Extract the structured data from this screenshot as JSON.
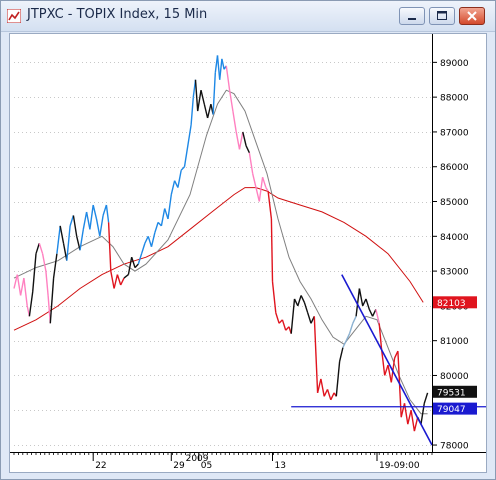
{
  "window": {
    "title": "JTPXC - TOPIX Index, 15 Min",
    "buttons": [
      "minimize",
      "maximize",
      "close"
    ]
  },
  "chart_data": {
    "type": "line",
    "instrument": "JTPXC",
    "title": "JTPXC - TOPIX Index, 15 Min",
    "y_ticks": [
      "89000",
      "88000",
      "87000",
      "86000",
      "85000",
      "84000",
      "83000",
      "82000",
      "81000",
      "80000",
      "79000",
      "78000"
    ],
    "x_ticks": [
      "22",
      "29",
      "05",
      "13",
      "19-09:00"
    ],
    "x_year_label": "2009",
    "ylim": [
      77800,
      89700
    ],
    "price_labels": [
      {
        "text": "82103",
        "value": 82103,
        "color": "#e0141e"
      },
      {
        "text": "79531",
        "value": 79531,
        "color": "#111111"
      },
      {
        "text": "79047",
        "value": 79047,
        "color": "#1a1ad0"
      }
    ],
    "price_series": [
      {
        "x": 0,
        "y": 82500,
        "color": "#ff80c0"
      },
      {
        "x": 3,
        "y": 82900,
        "color": "#ff80c0"
      },
      {
        "x": 6,
        "y": 82300,
        "color": "#ff80c0"
      },
      {
        "x": 9,
        "y": 82800,
        "color": "#ff80c0"
      },
      {
        "x": 12,
        "y": 82000,
        "color": "#ff80c0"
      },
      {
        "x": 14,
        "y": 81700,
        "color": "#ff80c0"
      },
      {
        "x": 17,
        "y": 82400,
        "color": "#111111"
      },
      {
        "x": 20,
        "y": 83500,
        "color": "#111111"
      },
      {
        "x": 23,
        "y": 83800,
        "color": "#111111"
      },
      {
        "x": 26,
        "y": 83500,
        "color": "#ff80c0"
      },
      {
        "x": 29,
        "y": 83000,
        "color": "#ff80c0"
      },
      {
        "x": 31,
        "y": 82300,
        "color": "#ff80c0"
      },
      {
        "x": 33,
        "y": 81500,
        "color": "#ff80c0"
      },
      {
        "x": 36,
        "y": 82800,
        "color": "#111111"
      },
      {
        "x": 39,
        "y": 83500,
        "color": "#111111"
      },
      {
        "x": 42,
        "y": 84300,
        "color": "#1e88e5"
      },
      {
        "x": 45,
        "y": 83800,
        "color": "#111111"
      },
      {
        "x": 48,
        "y": 83300,
        "color": "#111111"
      },
      {
        "x": 51,
        "y": 84300,
        "color": "#1e88e5"
      },
      {
        "x": 54,
        "y": 84600,
        "color": "#1e88e5"
      },
      {
        "x": 57,
        "y": 84000,
        "color": "#111111"
      },
      {
        "x": 60,
        "y": 83600,
        "color": "#111111"
      },
      {
        "x": 63,
        "y": 84200,
        "color": "#1e88e5"
      },
      {
        "x": 66,
        "y": 84700,
        "color": "#1e88e5"
      },
      {
        "x": 69,
        "y": 84200,
        "color": "#1e88e5"
      },
      {
        "x": 72,
        "y": 84900,
        "color": "#1e88e5"
      },
      {
        "x": 75,
        "y": 84500,
        "color": "#1e88e5"
      },
      {
        "x": 78,
        "y": 84000,
        "color": "#1e88e5"
      },
      {
        "x": 81,
        "y": 84600,
        "color": "#1e88e5"
      },
      {
        "x": 84,
        "y": 84900,
        "color": "#1e88e5"
      },
      {
        "x": 86,
        "y": 84400,
        "color": "#1e88e5"
      },
      {
        "x": 88,
        "y": 83000,
        "color": "#e0141e"
      },
      {
        "x": 91,
        "y": 82500,
        "color": "#e0141e"
      },
      {
        "x": 94,
        "y": 82900,
        "color": "#e0141e"
      },
      {
        "x": 97,
        "y": 82600,
        "color": "#e0141e"
      },
      {
        "x": 100,
        "y": 82800,
        "color": "#e0141e"
      },
      {
        "x": 104,
        "y": 82900,
        "color": "#111111"
      },
      {
        "x": 107,
        "y": 83400,
        "color": "#111111"
      },
      {
        "x": 110,
        "y": 83100,
        "color": "#111111"
      },
      {
        "x": 113,
        "y": 83200,
        "color": "#111111"
      },
      {
        "x": 116,
        "y": 83500,
        "color": "#1e88e5"
      },
      {
        "x": 119,
        "y": 83800,
        "color": "#1e88e5"
      },
      {
        "x": 122,
        "y": 84000,
        "color": "#1e88e5"
      },
      {
        "x": 125,
        "y": 83700,
        "color": "#1e88e5"
      },
      {
        "x": 128,
        "y": 84100,
        "color": "#1e88e5"
      },
      {
        "x": 131,
        "y": 84400,
        "color": "#1e88e5"
      },
      {
        "x": 134,
        "y": 84300,
        "color": "#1e88e5"
      },
      {
        "x": 137,
        "y": 84800,
        "color": "#1e88e5"
      },
      {
        "x": 140,
        "y": 84500,
        "color": "#1e88e5"
      },
      {
        "x": 143,
        "y": 85200,
        "color": "#1e88e5"
      },
      {
        "x": 146,
        "y": 85600,
        "color": "#1e88e5"
      },
      {
        "x": 149,
        "y": 85400,
        "color": "#1e88e5"
      },
      {
        "x": 152,
        "y": 85900,
        "color": "#1e88e5"
      },
      {
        "x": 155,
        "y": 86000,
        "color": "#1e88e5"
      },
      {
        "x": 161,
        "y": 87200,
        "color": "#1e88e5"
      },
      {
        "x": 163,
        "y": 88000,
        "color": "#1e88e5"
      },
      {
        "x": 165,
        "y": 88500,
        "color": "#1e88e5"
      },
      {
        "x": 167,
        "y": 87600,
        "color": "#111111"
      },
      {
        "x": 170,
        "y": 88200,
        "color": "#111111"
      },
      {
        "x": 173,
        "y": 87800,
        "color": "#111111"
      },
      {
        "x": 176,
        "y": 87400,
        "color": "#111111"
      },
      {
        "x": 179,
        "y": 87800,
        "color": "#111111"
      },
      {
        "x": 181,
        "y": 87500,
        "color": "#111111"
      },
      {
        "x": 183,
        "y": 88700,
        "color": "#1e88e5"
      },
      {
        "x": 185,
        "y": 89200,
        "color": "#1e88e5"
      },
      {
        "x": 187,
        "y": 88500,
        "color": "#1e88e5"
      },
      {
        "x": 189,
        "y": 89100,
        "color": "#1e88e5"
      },
      {
        "x": 191,
        "y": 88800,
        "color": "#1e88e5"
      },
      {
        "x": 193,
        "y": 88900,
        "color": "#1e88e5"
      },
      {
        "x": 196,
        "y": 88200,
        "color": "#ff80c0"
      },
      {
        "x": 199,
        "y": 87600,
        "color": "#ff80c0"
      },
      {
        "x": 202,
        "y": 87000,
        "color": "#ff80c0"
      },
      {
        "x": 205,
        "y": 86500,
        "color": "#ff80c0"
      },
      {
        "x": 208,
        "y": 87000,
        "color": "#ff80c0"
      },
      {
        "x": 211,
        "y": 86600,
        "color": "#111111"
      },
      {
        "x": 214,
        "y": 86400,
        "color": "#111111"
      },
      {
        "x": 217,
        "y": 85800,
        "color": "#ff80c0"
      },
      {
        "x": 220,
        "y": 85400,
        "color": "#ff80c0"
      },
      {
        "x": 223,
        "y": 85000,
        "color": "#ff80c0"
      },
      {
        "x": 226,
        "y": 85700,
        "color": "#ff80c0"
      },
      {
        "x": 229,
        "y": 85400,
        "color": "#ff80c0"
      },
      {
        "x": 231,
        "y": 85300,
        "color": "#ff80c0"
      },
      {
        "x": 234,
        "y": 84500,
        "color": "#e0141e"
      },
      {
        "x": 235,
        "y": 82700,
        "color": "#e0141e"
      },
      {
        "x": 238,
        "y": 81800,
        "color": "#e0141e"
      },
      {
        "x": 241,
        "y": 81500,
        "color": "#e0141e"
      },
      {
        "x": 244,
        "y": 81600,
        "color": "#e0141e"
      },
      {
        "x": 247,
        "y": 81300,
        "color": "#e0141e"
      },
      {
        "x": 250,
        "y": 81400,
        "color": "#e0141e"
      },
      {
        "x": 252,
        "y": 81200,
        "color": "#e0141e"
      },
      {
        "x": 255,
        "y": 82200,
        "color": "#111111"
      },
      {
        "x": 258,
        "y": 82000,
        "color": "#111111"
      },
      {
        "x": 261,
        "y": 82300,
        "color": "#111111"
      },
      {
        "x": 264,
        "y": 82100,
        "color": "#111111"
      },
      {
        "x": 267,
        "y": 81800,
        "color": "#111111"
      },
      {
        "x": 270,
        "y": 81500,
        "color": "#111111"
      },
      {
        "x": 273,
        "y": 81700,
        "color": "#111111"
      },
      {
        "x": 276,
        "y": 79500,
        "color": "#e0141e"
      },
      {
        "x": 279,
        "y": 79900,
        "color": "#e0141e"
      },
      {
        "x": 282,
        "y": 79400,
        "color": "#e0141e"
      },
      {
        "x": 285,
        "y": 79600,
        "color": "#e0141e"
      },
      {
        "x": 288,
        "y": 79300,
        "color": "#e0141e"
      },
      {
        "x": 291,
        "y": 79500,
        "color": "#e0141e"
      },
      {
        "x": 293,
        "y": 79400,
        "color": "#e0141e"
      },
      {
        "x": 296,
        "y": 80400,
        "color": "#111111"
      },
      {
        "x": 299,
        "y": 80800,
        "color": "#111111"
      },
      {
        "x": 302,
        "y": 81000,
        "color": "#8ab0d0"
      },
      {
        "x": 305,
        "y": 81200,
        "color": "#8ab0d0"
      },
      {
        "x": 308,
        "y": 81500,
        "color": "#8ab0d0"
      },
      {
        "x": 311,
        "y": 81700,
        "color": "#8ab0d0"
      },
      {
        "x": 314,
        "y": 82500,
        "color": "#111111"
      },
      {
        "x": 317,
        "y": 82000,
        "color": "#111111"
      },
      {
        "x": 320,
        "y": 82200,
        "color": "#111111"
      },
      {
        "x": 323,
        "y": 81900,
        "color": "#111111"
      },
      {
        "x": 326,
        "y": 81700,
        "color": "#111111"
      },
      {
        "x": 329,
        "y": 81900,
        "color": "#111111"
      },
      {
        "x": 332,
        "y": 81500,
        "color": "#ff80c0"
      },
      {
        "x": 334,
        "y": 80800,
        "color": "#e0141e"
      },
      {
        "x": 337,
        "y": 80000,
        "color": "#e0141e"
      },
      {
        "x": 340,
        "y": 80300,
        "color": "#e0141e"
      },
      {
        "x": 343,
        "y": 79800,
        "color": "#e0141e"
      },
      {
        "x": 346,
        "y": 80500,
        "color": "#e0141e"
      },
      {
        "x": 349,
        "y": 80700,
        "color": "#e0141e"
      },
      {
        "x": 352,
        "y": 78800,
        "color": "#e0141e"
      },
      {
        "x": 355,
        "y": 79200,
        "color": "#e0141e"
      },
      {
        "x": 358,
        "y": 78600,
        "color": "#e0141e"
      },
      {
        "x": 361,
        "y": 79000,
        "color": "#e0141e"
      },
      {
        "x": 364,
        "y": 78400,
        "color": "#e0141e"
      },
      {
        "x": 367,
        "y": 78800,
        "color": "#e0141e"
      },
      {
        "x": 370,
        "y": 78600,
        "color": "#111111"
      },
      {
        "x": 373,
        "y": 79200,
        "color": "#111111"
      },
      {
        "x": 376,
        "y": 79500,
        "color": "#111111"
      }
    ],
    "ma_fast": [
      {
        "x": 0,
        "y": 82800
      },
      {
        "x": 20,
        "y": 83100
      },
      {
        "x": 40,
        "y": 83300
      },
      {
        "x": 60,
        "y": 83700
      },
      {
        "x": 80,
        "y": 84000
      },
      {
        "x": 90,
        "y": 83700
      },
      {
        "x": 100,
        "y": 83200
      },
      {
        "x": 110,
        "y": 83000
      },
      {
        "x": 120,
        "y": 83200
      },
      {
        "x": 140,
        "y": 83900
      },
      {
        "x": 160,
        "y": 85200
      },
      {
        "x": 175,
        "y": 86900
      },
      {
        "x": 185,
        "y": 87800
      },
      {
        "x": 193,
        "y": 88200
      },
      {
        "x": 200,
        "y": 88100
      },
      {
        "x": 210,
        "y": 87600
      },
      {
        "x": 220,
        "y": 86700
      },
      {
        "x": 230,
        "y": 85800
      },
      {
        "x": 240,
        "y": 84500
      },
      {
        "x": 250,
        "y": 83400
      },
      {
        "x": 260,
        "y": 82700
      },
      {
        "x": 270,
        "y": 82200
      },
      {
        "x": 280,
        "y": 81600
      },
      {
        "x": 290,
        "y": 81100
      },
      {
        "x": 300,
        "y": 80900
      },
      {
        "x": 310,
        "y": 81300
      },
      {
        "x": 320,
        "y": 81700
      },
      {
        "x": 330,
        "y": 81600
      },
      {
        "x": 340,
        "y": 80800
      },
      {
        "x": 350,
        "y": 80000
      },
      {
        "x": 360,
        "y": 79300
      },
      {
        "x": 370,
        "y": 78900
      },
      {
        "x": 376,
        "y": 78900
      }
    ],
    "ma_slow": [
      {
        "x": 0,
        "y": 81300
      },
      {
        "x": 20,
        "y": 81600
      },
      {
        "x": 40,
        "y": 82000
      },
      {
        "x": 60,
        "y": 82500
      },
      {
        "x": 80,
        "y": 82900
      },
      {
        "x": 100,
        "y": 83200
      },
      {
        "x": 120,
        "y": 83400
      },
      {
        "x": 140,
        "y": 83700
      },
      {
        "x": 160,
        "y": 84200
      },
      {
        "x": 180,
        "y": 84700
      },
      {
        "x": 200,
        "y": 85200
      },
      {
        "x": 210,
        "y": 85400
      },
      {
        "x": 220,
        "y": 85400
      },
      {
        "x": 230,
        "y": 85300
      },
      {
        "x": 240,
        "y": 85100
      },
      {
        "x": 260,
        "y": 84900
      },
      {
        "x": 280,
        "y": 84700
      },
      {
        "x": 300,
        "y": 84400
      },
      {
        "x": 320,
        "y": 84000
      },
      {
        "x": 340,
        "y": 83500
      },
      {
        "x": 360,
        "y": 82700
      },
      {
        "x": 372,
        "y": 82100
      }
    ],
    "trendline_down": {
      "start": {
        "x": 298,
        "y": 82900
      },
      "end": {
        "x": 380,
        "y": 78000
      },
      "color": "#1a1ad0"
    },
    "horizontal_line": {
      "y": 79100,
      "x_start": 252,
      "x_end": 380,
      "color": "#1a1ad0"
    },
    "grid": true
  }
}
